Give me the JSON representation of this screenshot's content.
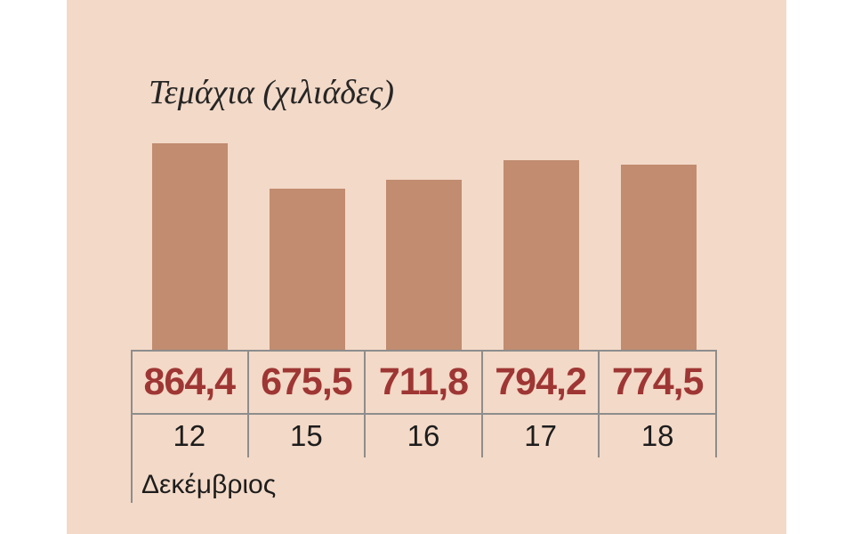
{
  "chart_data": {
    "type": "bar",
    "title": "Τεμάχια (χιλιάδες)",
    "categories": [
      "12",
      "15",
      "16",
      "17",
      "18"
    ],
    "values": [
      864.4,
      675.5,
      711.8,
      794.2,
      774.5
    ],
    "value_labels": [
      "864,4",
      "675,5",
      "711,8",
      "794,2",
      "774,5"
    ],
    "xlabel": "Δεκέμβριος",
    "ylabel": "",
    "ylim": [
      0,
      900
    ],
    "grid": false,
    "legend": "none",
    "layout_hint": "bars sit on top of a two-row data table; values row in dark red bold, years row below; month label bottom-left"
  },
  "colors": {
    "background": "#ffffff",
    "panel": "#f3d9c7",
    "bar": "#c18c70",
    "value_text": "#9e3634",
    "label_text": "#1d1d1d",
    "title_text": "#262626",
    "border": "#8d8d8d"
  }
}
